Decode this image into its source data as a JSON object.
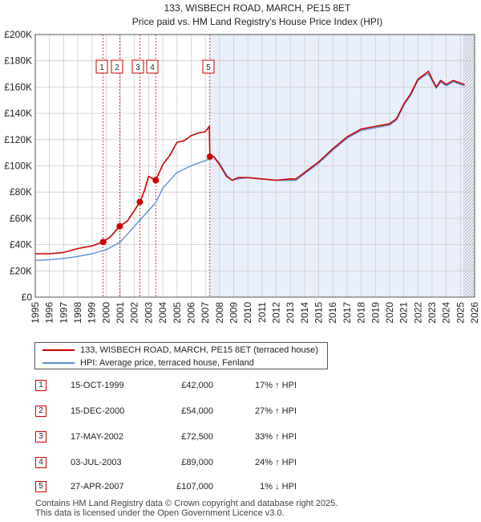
{
  "chart_data": {
    "type": "line",
    "title": "133, WISBECH ROAD, MARCH, PE15 8ET",
    "subtitle": "Price paid vs. HM Land Registry's House Price Index (HPI)",
    "xlabel": "",
    "ylabel": "",
    "xlim": [
      1995,
      2026
    ],
    "ylim": [
      0,
      200000
    ],
    "x_ticks": [
      1995,
      1996,
      1997,
      1998,
      1999,
      2000,
      2001,
      2002,
      2003,
      2004,
      2005,
      2006,
      2007,
      2008,
      2009,
      2010,
      2011,
      2012,
      2013,
      2014,
      2015,
      2016,
      2017,
      2018,
      2019,
      2020,
      2021,
      2022,
      2023,
      2024,
      2025,
      2026
    ],
    "y_ticks": [
      {
        "value": 0,
        "label": "£0"
      },
      {
        "value": 20000,
        "label": "£20K"
      },
      {
        "value": 40000,
        "label": "£40K"
      },
      {
        "value": 60000,
        "label": "£60K"
      },
      {
        "value": 80000,
        "label": "£80K"
      },
      {
        "value": 100000,
        "label": "£100K"
      },
      {
        "value": 120000,
        "label": "£120K"
      },
      {
        "value": 140000,
        "label": "£140K"
      },
      {
        "value": 160000,
        "label": "£160K"
      },
      {
        "value": 180000,
        "label": "£180K"
      },
      {
        "value": 200000,
        "label": "£200K"
      }
    ],
    "shaded_from": 2007.32,
    "hatched_from": 2025.2,
    "series": [
      {
        "name": "133, WISBECH ROAD, MARCH, PE15 8ET (terraced house)",
        "color": "#cc0000",
        "x": [
          1995.0,
          1996.0,
          1997.0,
          1998.0,
          1999.0,
          1999.79,
          2000.3,
          2000.96,
          2001.5,
          2002.0,
          2002.38,
          2002.7,
          2003.0,
          2003.5,
          2004.0,
          2004.5,
          2005.0,
          2005.5,
          2006.0,
          2006.5,
          2007.0,
          2007.28,
          2007.32,
          2007.6,
          2008.0,
          2008.5,
          2008.9,
          2009.3,
          2010.0,
          2011.0,
          2012.0,
          2013.0,
          2013.4,
          2014.0,
          2015.0,
          2016.0,
          2017.0,
          2018.0,
          2019.0,
          2020.0,
          2020.5,
          2021.0,
          2021.5,
          2022.0,
          2022.5,
          2022.75,
          2023.0,
          2023.3,
          2023.6,
          2024.0,
          2024.5,
          2025.0,
          2025.3
        ],
        "y": [
          33000,
          33000,
          34000,
          37000,
          39000,
          42000,
          46000,
          54000,
          58000,
          66000,
          72500,
          81000,
          92000,
          89000,
          101000,
          108000,
          118000,
          119000,
          123000,
          125000,
          126000,
          130000,
          107000,
          107000,
          101000,
          92000,
          89000,
          91000,
          91000,
          90000,
          89000,
          90000,
          90000,
          95000,
          103000,
          113000,
          122000,
          128000,
          130000,
          132000,
          136000,
          147000,
          155000,
          166000,
          170000,
          172000,
          166000,
          160000,
          165000,
          162000,
          165000,
          163000,
          162000
        ]
      },
      {
        "name": "HPI: Average price, terraced house, Fenland",
        "color": "#5b8fd6",
        "x": [
          1995.0,
          1996.0,
          1997.0,
          1998.0,
          1999.0,
          2000.0,
          2001.0,
          2002.0,
          2003.0,
          2003.5,
          2004.0,
          2005.0,
          2006.0,
          2007.0,
          2007.6,
          2008.0,
          2008.5,
          2008.9,
          2009.3,
          2010.0,
          2011.0,
          2012.0,
          2013.0,
          2013.4,
          2014.0,
          2015.0,
          2016.0,
          2017.0,
          2018.0,
          2019.0,
          2020.0,
          2020.5,
          2021.0,
          2021.5,
          2022.0,
          2022.5,
          2022.75,
          2023.0,
          2023.3,
          2023.6,
          2024.0,
          2024.5,
          2025.0,
          2025.3
        ],
        "y": [
          28000,
          28500,
          29500,
          31000,
          33000,
          36000,
          42000,
          54000,
          66000,
          72000,
          83000,
          95000,
          100000,
          104000,
          107000,
          102000,
          93000,
          89000,
          90000,
          91000,
          90000,
          89000,
          89000,
          89000,
          94000,
          102000,
          112000,
          121000,
          127000,
          129000,
          131000,
          135000,
          146000,
          154000,
          165000,
          169000,
          170000,
          165000,
          159000,
          164000,
          161000,
          164000,
          162000,
          161000
        ]
      }
    ],
    "sale_markers": [
      {
        "num": "1",
        "x": 1999.79,
        "y": 42000
      },
      {
        "num": "2",
        "x": 2000.96,
        "y": 54000
      },
      {
        "num": "3",
        "x": 2002.38,
        "y": 72500
      },
      {
        "num": "4",
        "x": 2003.5,
        "y": 89000
      },
      {
        "num": "5",
        "x": 2007.32,
        "y": 107000
      }
    ]
  },
  "legend": {
    "property_label": "133, WISBECH ROAD, MARCH, PE15 8ET (terraced house)",
    "hpi_label": "HPI: Average price, terraced house, Fenland",
    "property_color": "#cc0000",
    "hpi_color": "#5b8fd6"
  },
  "sales": [
    {
      "num": "1",
      "date": "15-OCT-1999",
      "price": "£42,000",
      "hpi": "17% ↑ HPI"
    },
    {
      "num": "2",
      "date": "15-DEC-2000",
      "price": "£54,000",
      "hpi": "27% ↑ HPI"
    },
    {
      "num": "3",
      "date": "17-MAY-2002",
      "price": "£72,500",
      "hpi": "33% ↑ HPI"
    },
    {
      "num": "4",
      "date": "03-JUL-2003",
      "price": "£89,000",
      "hpi": "24% ↑ HPI"
    },
    {
      "num": "5",
      "date": "27-APR-2007",
      "price": "£107,000",
      "hpi": "1% ↓ HPI"
    }
  ],
  "footer": {
    "line1": "Contains HM Land Registry data © Crown copyright and database right 2025.",
    "line2": "This data is licensed under the Open Government Licence v3.0."
  }
}
